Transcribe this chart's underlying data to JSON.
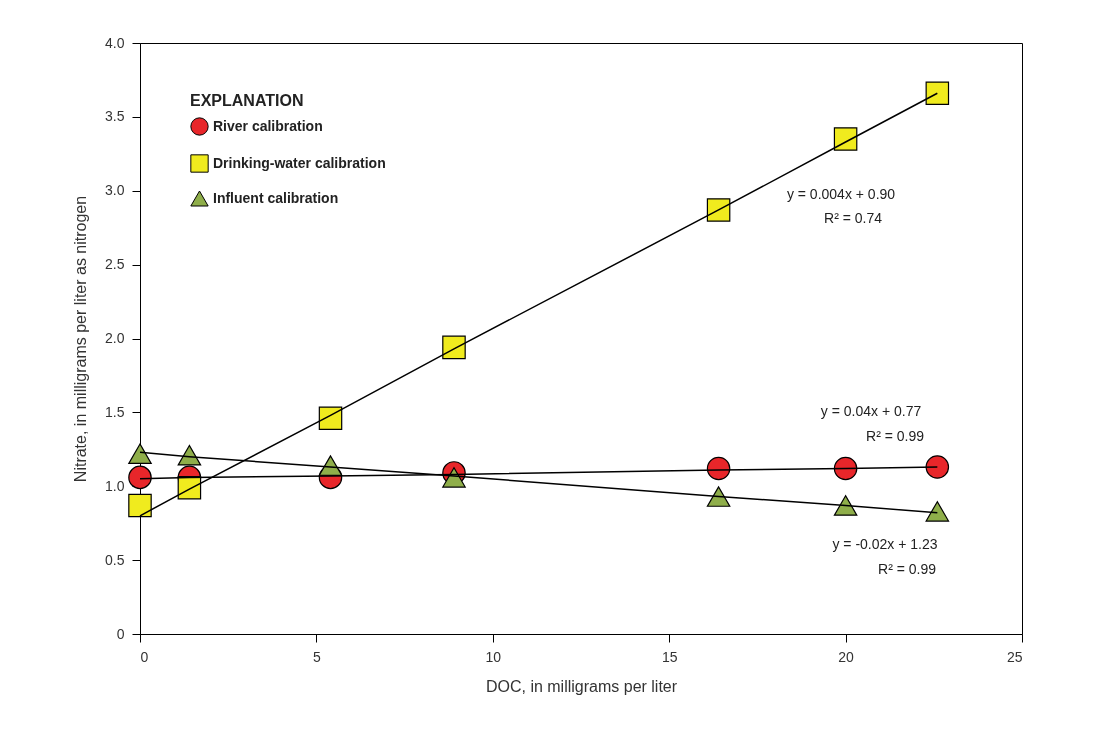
{
  "chart_data": {
    "type": "scatter",
    "xlabel": "DOC, in milligrams per liter",
    "ylabel": "Nitrate, in milligrams per liter as nitrogen",
    "legend_title": "EXPLANATION",
    "legend": "top left",
    "grid": false,
    "xlim": [
      0,
      25
    ],
    "xticks": [
      0,
      5,
      10,
      15,
      20,
      25
    ],
    "ylim": [
      0,
      4
    ],
    "yticks": [
      0,
      0.5,
      {
        "value": 1,
        "label": "1.0"
      },
      1.5,
      {
        "value": 2,
        "label": "2.0"
      },
      2.5,
      {
        "value": 3,
        "label": "3.0"
      },
      3.5,
      {
        "value": 4,
        "label": "4.0"
      }
    ],
    "x": [
      0,
      1.4,
      5.4,
      8.9,
      16.4,
      20,
      22.6
    ],
    "series": [
      {
        "name": "River calibration",
        "color": "#e8262a",
        "marker": "circle",
        "values": [
          1.06,
          1.06,
          1.06,
          1.09,
          1.12,
          1.12,
          1.13
        ]
      },
      {
        "name": "Drinking-water calibration",
        "color": "#f0eb1e",
        "marker": "square",
        "values": [
          0.87,
          0.99,
          1.46,
          1.94,
          2.87,
          3.35,
          3.66
        ]
      },
      {
        "name": "Influent calibration",
        "color": "#8fae4a",
        "marker": "triangle",
        "values": [
          1.22,
          1.21,
          1.14,
          1.06,
          0.93,
          0.87,
          0.83
        ]
      },
      {
        "type": "line",
        "color": "#000000",
        "values": [
          1.05,
          1.06,
          1.07,
          1.08,
          1.11,
          1.12,
          1.13
        ]
      },
      {
        "type": "line",
        "color": "#000000",
        "values": [
          0.8,
          0.98,
          1.48,
          1.93,
          2.87,
          3.33,
          3.66
        ]
      },
      {
        "type": "line",
        "color": "#000000",
        "values": [
          1.23,
          1.2,
          1.13,
          1.07,
          0.93,
          0.87,
          0.82
        ]
      }
    ],
    "annotations": [
      "y = 0.004x + 0.90",
      "R² = 0.74",
      "y = 0.04x + 0.77",
      "R² = 0.99",
      "y = -0.02x + 1.23",
      "R² = 0.99"
    ]
  }
}
